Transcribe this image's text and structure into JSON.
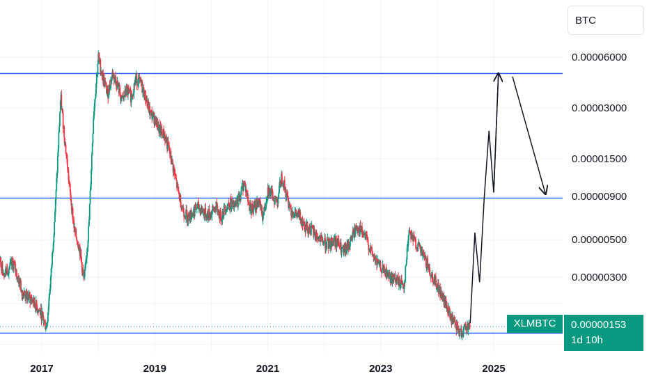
{
  "chart_data": {
    "type": "candlestick",
    "symbol": "XLMBTC",
    "interval": "1d",
    "currency": "BTC",
    "scale": "log",
    "x_ticks": [
      "2017",
      "2019",
      "2021",
      "2023",
      "2025"
    ],
    "y_ticks": [
      "0.00006000",
      "0.00003000",
      "0.00001500",
      "0.00000900",
      "0.00000500",
      "0.00000300"
    ],
    "ylim": [
      1.3e-06,
      9e-05
    ],
    "last_price": "0.00000153",
    "countdown": "1d 10h",
    "horizontal_lines": [
      4.8e-05,
      8.8e-06,
      1.4e-06
    ],
    "price_path": [
      [
        "2016-01",
        5.5e-06
      ],
      [
        "2016-03",
        4.6e-06
      ],
      [
        "2016-05",
        3.2e-06
      ],
      [
        "2016-07",
        3.6e-06
      ],
      [
        "2016-09",
        2.4e-06
      ],
      [
        "2016-11",
        2.2e-06
      ],
      [
        "2017-01",
        1.8e-06
      ],
      [
        "2017-02",
        1.5e-06
      ],
      [
        "2017-03",
        3.2e-06
      ],
      [
        "2017-04",
        9e-06
      ],
      [
        "2017-05",
        3.5e-05
      ],
      [
        "2017-06",
        1.8e-05
      ],
      [
        "2017-07",
        9.5e-06
      ],
      [
        "2017-08",
        5.5e-06
      ],
      [
        "2017-09",
        4.5e-06
      ],
      [
        "2017-10",
        2.8e-06
      ],
      [
        "2017-11",
        6e-06
      ],
      [
        "2017-12",
        2.8e-05
      ],
      [
        "2018-01",
        6e-05
      ],
      [
        "2018-02",
        4.5e-05
      ],
      [
        "2018-03",
        3.6e-05
      ],
      [
        "2018-04",
        4.8e-05
      ],
      [
        "2018-05",
        4.2e-05
      ],
      [
        "2018-06",
        3.3e-05
      ],
      [
        "2018-07",
        3.8e-05
      ],
      [
        "2018-08",
        3.5e-05
      ],
      [
        "2018-09",
        4.5e-05
      ],
      [
        "2018-10",
        4.2e-05
      ],
      [
        "2018-11",
        3.5e-05
      ],
      [
        "2018-12",
        2.8e-05
      ],
      [
        "2019-01",
        2.6e-05
      ],
      [
        "2019-02",
        2.2e-05
      ],
      [
        "2019-03",
        2.1e-05
      ],
      [
        "2019-04",
        1.7e-05
      ],
      [
        "2019-05",
        1.3e-05
      ],
      [
        "2019-06",
        9.5e-06
      ],
      [
        "2019-07",
        7.5e-06
      ],
      [
        "2019-08",
        6.8e-06
      ],
      [
        "2019-09",
        7.2e-06
      ],
      [
        "2019-10",
        7.8e-06
      ],
      [
        "2019-11",
        7.5e-06
      ],
      [
        "2019-12",
        7e-06
      ],
      [
        "2020-01",
        7.2e-06
      ],
      [
        "2020-02",
        7.8e-06
      ],
      [
        "2020-03",
        6.8e-06
      ],
      [
        "2020-04",
        7.8e-06
      ],
      [
        "2020-05",
        8.2e-06
      ],
      [
        "2020-06",
        7.8e-06
      ],
      [
        "2020-07",
        9e-06
      ],
      [
        "2020-08",
        1.1e-05
      ],
      [
        "2020-09",
        8e-06
      ],
      [
        "2020-10",
        7.5e-06
      ],
      [
        "2020-11",
        8.5e-06
      ],
      [
        "2020-12",
        6.8e-06
      ],
      [
        "2021-01",
        1e-05
      ],
      [
        "2021-02",
        9e-06
      ],
      [
        "2021-03",
        8.5e-06
      ],
      [
        "2021-04",
        1.2e-05
      ],
      [
        "2021-05",
        9e-06
      ],
      [
        "2021-06",
        7.5e-06
      ],
      [
        "2021-07",
        7e-06
      ],
      [
        "2021-08",
        6.8e-06
      ],
      [
        "2021-09",
        6e-06
      ],
      [
        "2021-10",
        5.8e-06
      ],
      [
        "2021-11",
        5.4e-06
      ],
      [
        "2021-12",
        5e-06
      ],
      [
        "2022-01",
        4.8e-06
      ],
      [
        "2022-02",
        4.7e-06
      ],
      [
        "2022-03",
        5e-06
      ],
      [
        "2022-04",
        4.7e-06
      ],
      [
        "2022-05",
        4.2e-06
      ],
      [
        "2022-06",
        4.5e-06
      ],
      [
        "2022-07",
        5.3e-06
      ],
      [
        "2022-08",
        6e-06
      ],
      [
        "2022-09",
        5.5e-06
      ],
      [
        "2022-10",
        5e-06
      ],
      [
        "2022-11",
        4.2e-06
      ],
      [
        "2022-12",
        3.7e-06
      ],
      [
        "2023-01",
        3.4e-06
      ],
      [
        "2023-02",
        3.2e-06
      ],
      [
        "2023-03",
        3e-06
      ],
      [
        "2023-04",
        2.9e-06
      ],
      [
        "2023-05",
        2.8e-06
      ],
      [
        "2023-06",
        2.7e-06
      ],
      [
        "2023-07",
        5.8e-06
      ],
      [
        "2023-08",
        5e-06
      ],
      [
        "2023-09",
        4.5e-06
      ],
      [
        "2023-10",
        4e-06
      ],
      [
        "2023-11",
        3.5e-06
      ],
      [
        "2023-12",
        3e-06
      ],
      [
        "2024-01",
        2.7e-06
      ],
      [
        "2024-02",
        2.3e-06
      ],
      [
        "2024-03",
        2e-06
      ],
      [
        "2024-04",
        1.7e-06
      ],
      [
        "2024-05",
        1.5e-06
      ],
      [
        "2024-06",
        1.4e-06
      ],
      [
        "2024-07",
        1.5e-06
      ],
      [
        "2024-08",
        1.6e-06
      ]
    ],
    "projection_path": [
      [
        "2024-08",
        1.6e-06
      ],
      [
        "2024-09",
        5.5e-06
      ],
      [
        "2024-10",
        2.8e-06
      ],
      [
        "2024-11",
        9e-06
      ],
      [
        "2024-12",
        2.2e-05
      ],
      [
        "2025-01",
        9.5e-06
      ],
      [
        "2025-02",
        4.8e-05
      ]
    ],
    "projection_arrow": [
      [
        "2025-05",
        4.6e-05
      ],
      [
        "2025-12",
        9.3e-06
      ]
    ]
  },
  "colors": {
    "up": "#089981",
    "down": "#f23645",
    "level_line": "#2962ff",
    "projection": "#131722",
    "last_price_line": "#089981",
    "grid": "#f0f3fa",
    "text": "#131722"
  }
}
